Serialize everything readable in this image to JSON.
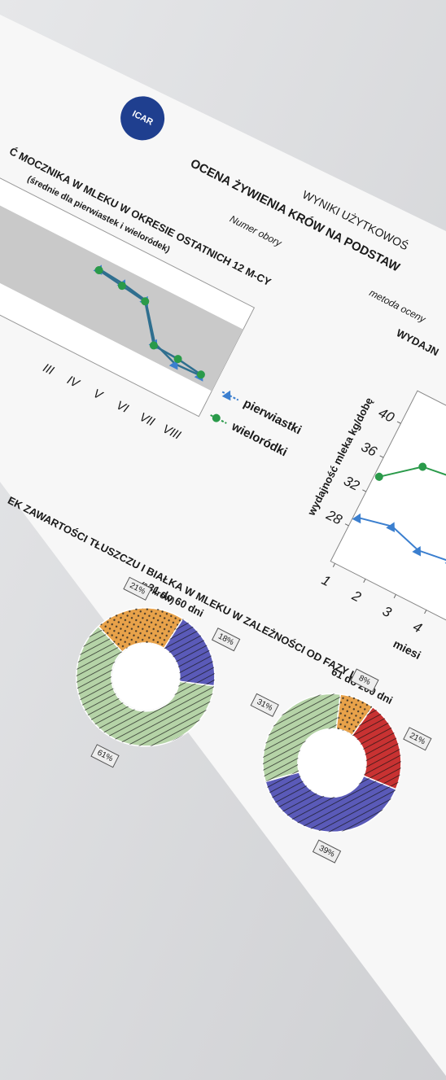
{
  "header": {
    "org_mark": "ICAR",
    "report": "WYNIKI UŻYTKOWOŚ",
    "title": "OCENA ŻYWIENIA KRÓW NA PODSTAW",
    "herd_label": "Numer obory",
    "method_label": "metoda oceny"
  },
  "charts": [
    {
      "type": "line",
      "title": "Ć MOCZNIKA W MLEKU W OKRESIE OSTATNICH 12 M-CY",
      "subtitle": "(średnie dla pierwiastek i wieloródek)",
      "categories": [
        "III",
        "IV",
        "V",
        "VI",
        "VII",
        "VIII"
      ],
      "ylim": [
        0,
        10
      ],
      "series": [
        {
          "name": "pierwiastki",
          "color": "#3b7fcf",
          "marker": "triangle",
          "values": [
            7.2,
            7.0,
            6.6,
            3.6,
            2.8,
            2.9
          ]
        },
        {
          "name": "wieloródki",
          "color": "#2a9a4a",
          "marker": "circle",
          "values": [
            7.1,
            6.8,
            6.5,
            3.4,
            3.3,
            3.0
          ]
        }
      ]
    },
    {
      "type": "line",
      "title": "WYDAJN",
      "y_label": "wydajność mleka kg/dobę",
      "x_label": "miesi",
      "x": [
        1,
        2,
        3,
        4
      ],
      "xticks": [
        1,
        2,
        3,
        4
      ],
      "ylim": [
        26,
        42
      ],
      "yticks": [
        28,
        32,
        36,
        40
      ],
      "series": [
        {
          "name": "pierwiastki",
          "color": "#3b7fcf",
          "marker": "triangle",
          "values": [
            29.2,
            30,
            29,
            29.5
          ]
        },
        {
          "name": "wieloródki",
          "color": "#2a9a4a",
          "marker": "circle",
          "values": [
            34,
            37,
            37.5,
            36
          ]
        }
      ]
    },
    {
      "type": "donut",
      "title": "EK ZAWARTOŚCI TŁUSZCZU I BIAŁKA W MLEKU W ZALEŻNOŚCI OD FAZY LAK",
      "subtitle": "(% krów)",
      "panels": [
        {
          "title": "31 do 60 dni",
          "values": [
            21,
            18,
            61
          ],
          "value_labels": [
            "21%",
            "18%",
            "61%"
          ],
          "colors": [
            "#e8a24a",
            "#5a5ab8",
            "#b5d3a7"
          ],
          "patterns": [
            "dots",
            "hatch",
            "hatch"
          ]
        },
        {
          "title": "61 do 200 dni",
          "values": [
            8,
            21,
            39,
            31
          ],
          "value_labels": [
            "8%",
            "21%",
            "39%",
            "31%"
          ],
          "colors": [
            "#e8a24a",
            "#c83232",
            "#5a5ab8",
            "#b5d3a7"
          ],
          "patterns": [
            "dots",
            "hatch",
            "hatch",
            "hatch"
          ]
        }
      ]
    }
  ]
}
